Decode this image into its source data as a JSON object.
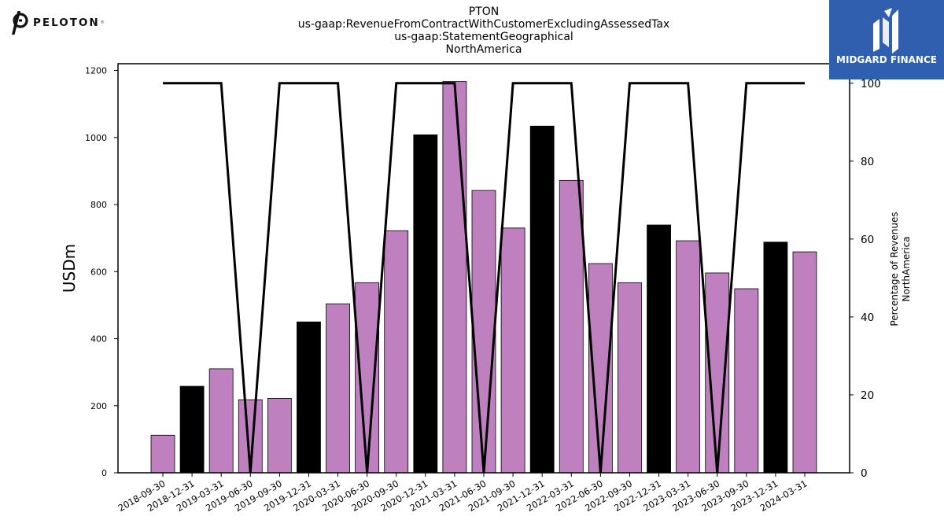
{
  "header": {
    "title_lines": [
      "PTON",
      "us-gaap:RevenueFromContractWithCustomerExcludingAssessedTax",
      "us-gaap:StatementGeographical",
      "NorthAmerica"
    ]
  },
  "logos": {
    "left_text": "PELOTON",
    "left_mark": "®",
    "right_text": "MIDGARD FINANCE"
  },
  "chart_data": {
    "type": "bar",
    "categories": [
      "2018-09-30",
      "2018-12-31",
      "2019-03-31",
      "2019-06-30",
      "2019-09-30",
      "2019-12-31",
      "2020-03-31",
      "2020-06-30",
      "2020-09-30",
      "2020-12-31",
      "2021-03-31",
      "2021-06-30",
      "2021-09-30",
      "2021-12-31",
      "2022-03-31",
      "2022-06-30",
      "2022-09-30",
      "2022-12-31",
      "2023-03-31",
      "2023-06-30",
      "2023-09-30",
      "2023-12-31",
      "2024-03-31"
    ],
    "values": [
      112,
      258,
      310,
      218,
      222,
      450,
      504,
      567,
      722,
      1008,
      1167,
      842,
      730,
      1034,
      872,
      624,
      567,
      739,
      692,
      596,
      549,
      688,
      659
    ],
    "bar_colors": [
      "#bf80bf",
      "#000000",
      "#bf80bf",
      "#bf80bf",
      "#bf80bf",
      "#000000",
      "#bf80bf",
      "#bf80bf",
      "#bf80bf",
      "#000000",
      "#bf80bf",
      "#bf80bf",
      "#bf80bf",
      "#000000",
      "#bf80bf",
      "#bf80bf",
      "#bf80bf",
      "#000000",
      "#bf80bf",
      "#bf80bf",
      "#bf80bf",
      "#000000",
      "#bf80bf"
    ],
    "line_values": [
      100,
      100,
      100,
      0,
      100,
      100,
      100,
      0,
      100,
      100,
      100,
      0,
      100,
      100,
      100,
      0,
      100,
      100,
      100,
      0,
      100,
      100,
      100
    ],
    "line_color": "#000000",
    "ylabel": "USDm",
    "ylim": [
      0,
      1220
    ],
    "yticks": [
      0,
      200,
      400,
      600,
      800,
      1000,
      1200
    ],
    "y2label_lines": [
      "Percentage of Revenues",
      "NorthAmerica"
    ],
    "y2lim": [
      0,
      105
    ],
    "y2ticks": [
      0,
      20,
      40,
      60,
      80,
      100
    ],
    "grid": false
  }
}
